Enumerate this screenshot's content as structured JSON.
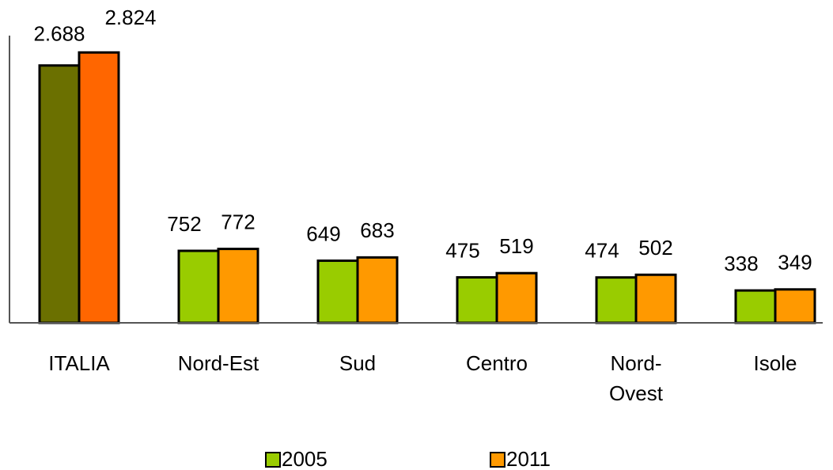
{
  "chart_data": {
    "type": "bar",
    "categories": [
      "ITALIA",
      "Nord-Est",
      "Sud",
      "Centro",
      "Nord-\nOvest",
      "Isole"
    ],
    "series": [
      {
        "name": "2005",
        "color": "#99cc00",
        "colors": [
          "#6b7000",
          "#99cc00",
          "#99cc00",
          "#99cc00",
          "#99cc00",
          "#99cc00"
        ],
        "values": [
          2688,
          752,
          649,
          475,
          474,
          338
        ],
        "value_labels": [
          "2.688",
          "752",
          "649",
          "475",
          "474",
          "338"
        ]
      },
      {
        "name": "2011",
        "color": "#ff9900",
        "colors": [
          "#ff6600",
          "#ff9900",
          "#ff9900",
          "#ff9900",
          "#ff9900",
          "#ff9900"
        ],
        "values": [
          2824,
          772,
          683,
          519,
          502,
          349
        ],
        "value_labels": [
          "2.824",
          "772",
          "683",
          "519",
          "502",
          "349"
        ]
      }
    ],
    "ylim": [
      0,
      3000
    ],
    "legend": "bottom"
  }
}
